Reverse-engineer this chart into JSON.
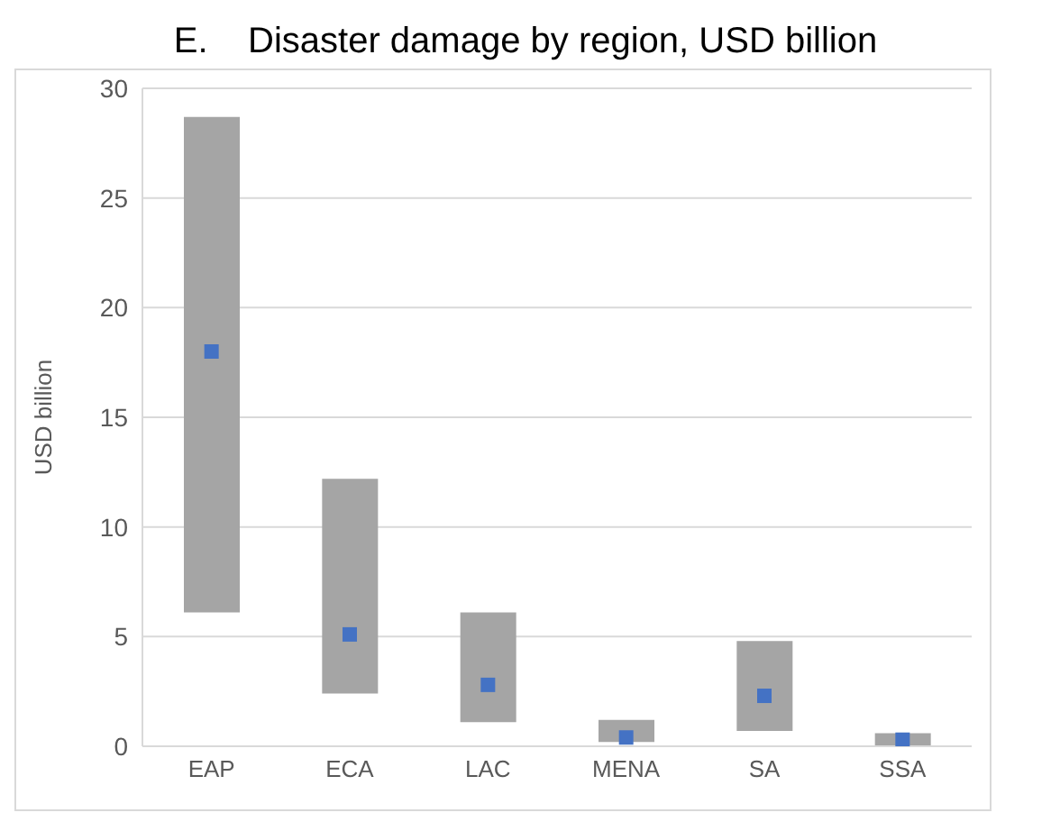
{
  "chart_data": {
    "type": "bar",
    "title": "E.    Disaster damage by region, USD billion",
    "ylabel": "USD billion",
    "categories": [
      "EAP",
      "ECA",
      "LAC",
      "MENA",
      "SA",
      "SSA"
    ],
    "series": [
      {
        "type": "bar",
        "color": "#a5a5a5",
        "base": [
          6.1,
          2.4,
          1.1,
          0.2,
          0.7,
          0
        ],
        "values": [
          22.6,
          9.8,
          5.0,
          1.0,
          4.1,
          0.6
        ]
      },
      {
        "type": "scatter",
        "color": "#4472c4",
        "marker": "square",
        "x": [
          "EAP",
          "ECA",
          "LAC",
          "MENA",
          "SA",
          "SSA"
        ],
        "values": [
          18.0,
          5.1,
          2.8,
          0.4,
          2.3,
          0.3
        ]
      }
    ],
    "ylim": [
      0,
      30
    ],
    "yticks": [
      0,
      5,
      10,
      15,
      20,
      25,
      30
    ],
    "grid": "y",
    "legend": false
  }
}
